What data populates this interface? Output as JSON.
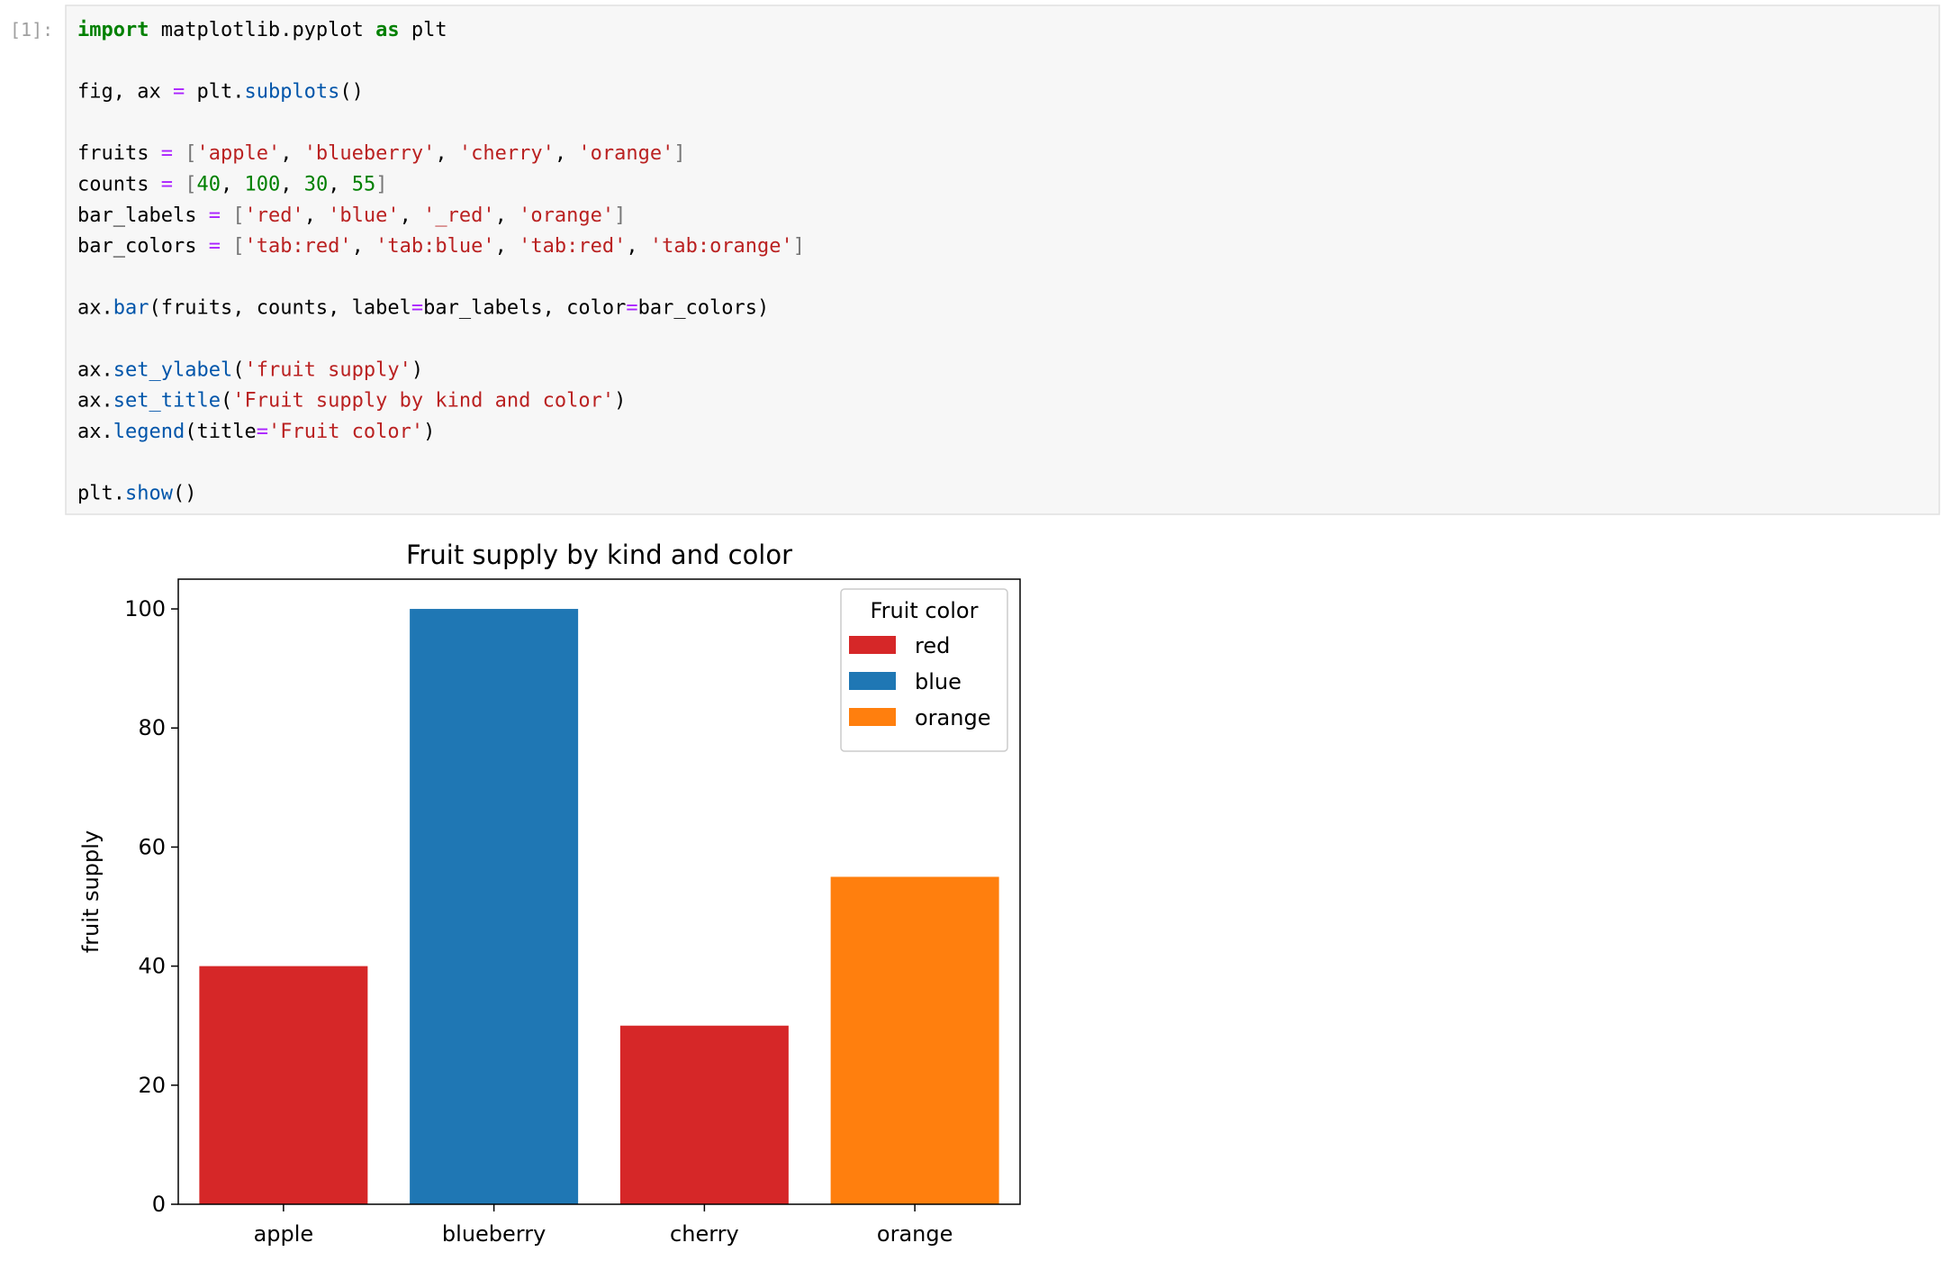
{
  "notebook": {
    "prompt": "[1]:",
    "code": {
      "blocks": [
        [
          "import matplotlib.pyplot as plt"
        ],
        [
          "fig, ax = plt.subplots()"
        ],
        [
          "fruits = ['apple', 'blueberry', 'cherry', 'orange']",
          "counts = [40, 100, 30, 55]",
          "bar_labels = ['red', 'blue', '_red', 'orange']",
          "bar_colors = ['tab:red', 'tab:blue', 'tab:red', 'tab:orange']"
        ],
        [
          "ax.bar(fruits, counts, label=bar_labels, color=bar_colors)"
        ],
        [
          "ax.set_ylabel('fruit supply')",
          "ax.set_title('Fruit supply by kind and color')",
          "ax.legend(title='Fruit color')"
        ],
        [
          "plt.show()"
        ]
      ]
    }
  },
  "chart_data": {
    "type": "bar",
    "title": "Fruit supply by kind and color",
    "ylabel": "fruit supply",
    "categories": [
      "apple",
      "blueberry",
      "cherry",
      "orange"
    ],
    "values": [
      40,
      100,
      30,
      55
    ],
    "colors": [
      "#d62728",
      "#1f77b4",
      "#d62728",
      "#ff7f0e"
    ],
    "ylim": [
      0,
      105
    ],
    "yticks": [
      0,
      20,
      40,
      60,
      80,
      100
    ],
    "grid": false,
    "legend": {
      "title": "Fruit color",
      "position": "upper right",
      "entries": [
        {
          "name": "red",
          "color": "#d62728"
        },
        {
          "name": "blue",
          "color": "#1f77b4"
        },
        {
          "name": "orange",
          "color": "#ff7f0e"
        }
      ]
    }
  }
}
